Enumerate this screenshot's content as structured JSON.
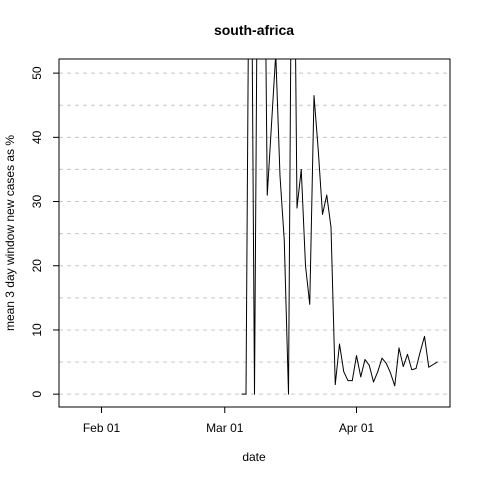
{
  "chart_data": {
    "type": "line",
    "title": "south-africa",
    "xlabel": "date",
    "ylabel": "mean  3  day window new cases as %",
    "x_ticks": [
      "Feb 01",
      "Mar 01",
      "Apr 01"
    ],
    "y_ticks": [
      0,
      10,
      20,
      30,
      40,
      50
    ],
    "xlim": [
      "2020-01-22",
      "2020-04-23"
    ],
    "ylim": [
      -2,
      52.2
    ],
    "grid": "horizontal dashed",
    "series": [
      {
        "points": [
          [
            "2020-03-05",
            0
          ],
          [
            "2020-03-06",
            0
          ],
          [
            "2020-03-07",
            100
          ],
          [
            "2020-03-08",
            0
          ],
          [
            "2020-03-09",
            100
          ],
          [
            "2020-03-10",
            100
          ],
          [
            "2020-03-11",
            31
          ],
          [
            "2020-03-12",
            42
          ],
          [
            "2020-03-13",
            53
          ],
          [
            "2020-03-14",
            34
          ],
          [
            "2020-03-15",
            24
          ],
          [
            "2020-03-16",
            0
          ],
          [
            "2020-03-17",
            100
          ],
          [
            "2020-03-18",
            29
          ],
          [
            "2020-03-19",
            35
          ],
          [
            "2020-03-20",
            20
          ],
          [
            "2020-03-21",
            14
          ],
          [
            "2020-03-22",
            46.5
          ],
          [
            "2020-03-23",
            38
          ],
          [
            "2020-03-24",
            28
          ],
          [
            "2020-03-25",
            31
          ],
          [
            "2020-03-26",
            26
          ],
          [
            "2020-03-27",
            1.5
          ],
          [
            "2020-03-28",
            7.8
          ],
          [
            "2020-03-29",
            3.5
          ],
          [
            "2020-03-30",
            2.1
          ],
          [
            "2020-03-31",
            2.1
          ],
          [
            "2020-04-01",
            6
          ],
          [
            "2020-04-02",
            2.7
          ],
          [
            "2020-04-03",
            5.4
          ],
          [
            "2020-04-04",
            4.5
          ],
          [
            "2020-04-05",
            1.9
          ],
          [
            "2020-04-06",
            3.5
          ],
          [
            "2020-04-07",
            5.6
          ],
          [
            "2020-04-08",
            4.8
          ],
          [
            "2020-04-09",
            3.3
          ],
          [
            "2020-04-10",
            1.3
          ],
          [
            "2020-04-11",
            7.2
          ],
          [
            "2020-04-12",
            4.3
          ],
          [
            "2020-04-13",
            6.2
          ],
          [
            "2020-04-14",
            3.8
          ],
          [
            "2020-04-15",
            4.0
          ],
          [
            "2020-04-16",
            6.6
          ],
          [
            "2020-04-17",
            9.0
          ],
          [
            "2020-04-18",
            4.2
          ],
          [
            "2020-04-19",
            4.6
          ],
          [
            "2020-04-20",
            5.0
          ]
        ],
        "color": "#000000"
      }
    ]
  }
}
